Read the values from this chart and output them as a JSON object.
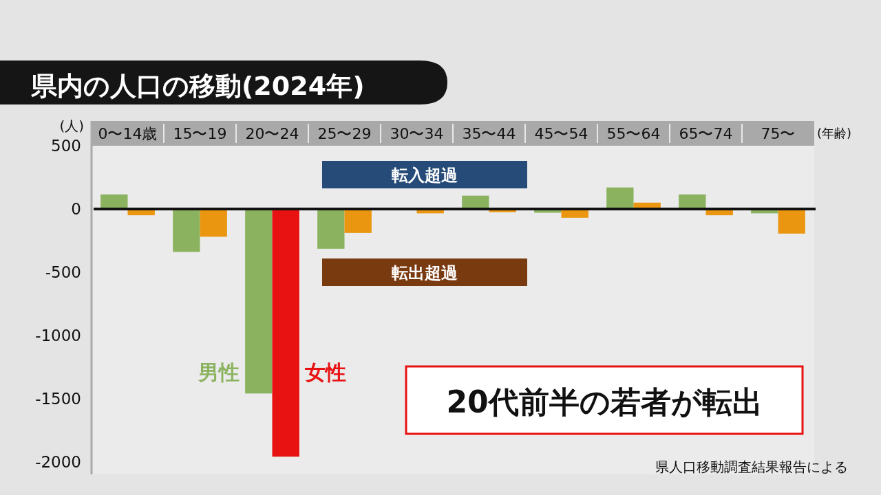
{
  "chart_data": {
    "type": "bar",
    "title": "県内の人口の移動(2024年)",
    "ylabel": "(人)",
    "xlabel": "(年齢)",
    "categories": [
      "0〜14歳",
      "15〜19",
      "20〜24",
      "25〜29",
      "30〜34",
      "35〜44",
      "45〜54",
      "55〜64",
      "65〜74",
      "75〜"
    ],
    "series": [
      {
        "name": "男性",
        "color": "#8bb35f",
        "values": [
          115,
          -340,
          -1460,
          -315,
          0,
          105,
          -30,
          170,
          115,
          -35
        ]
      },
      {
        "name": "女性",
        "colors": [
          "#ea9611",
          "#ea9611",
          "#e81212",
          "#ea9611",
          "#ea9611",
          "#ea9611",
          "#ea9611",
          "#ea9611",
          "#ea9611",
          "#ea9611"
        ],
        "values": [
          -50,
          -220,
          -1960,
          -190,
          -35,
          -25,
          -70,
          50,
          -50,
          -195
        ]
      }
    ],
    "ylim": [
      -2100,
      500
    ],
    "yticks": [
      -2000,
      -1500,
      -1000,
      -500,
      0,
      500
    ],
    "ref_lines": [
      {
        "axis": "y",
        "value": 0,
        "color": "#111111"
      }
    ],
    "annotations": [
      "転入超過",
      "転出超過",
      "20代前半の若者が転出",
      "県人口移動調査結果報告による"
    ],
    "grid": false,
    "legend": false
  }
}
